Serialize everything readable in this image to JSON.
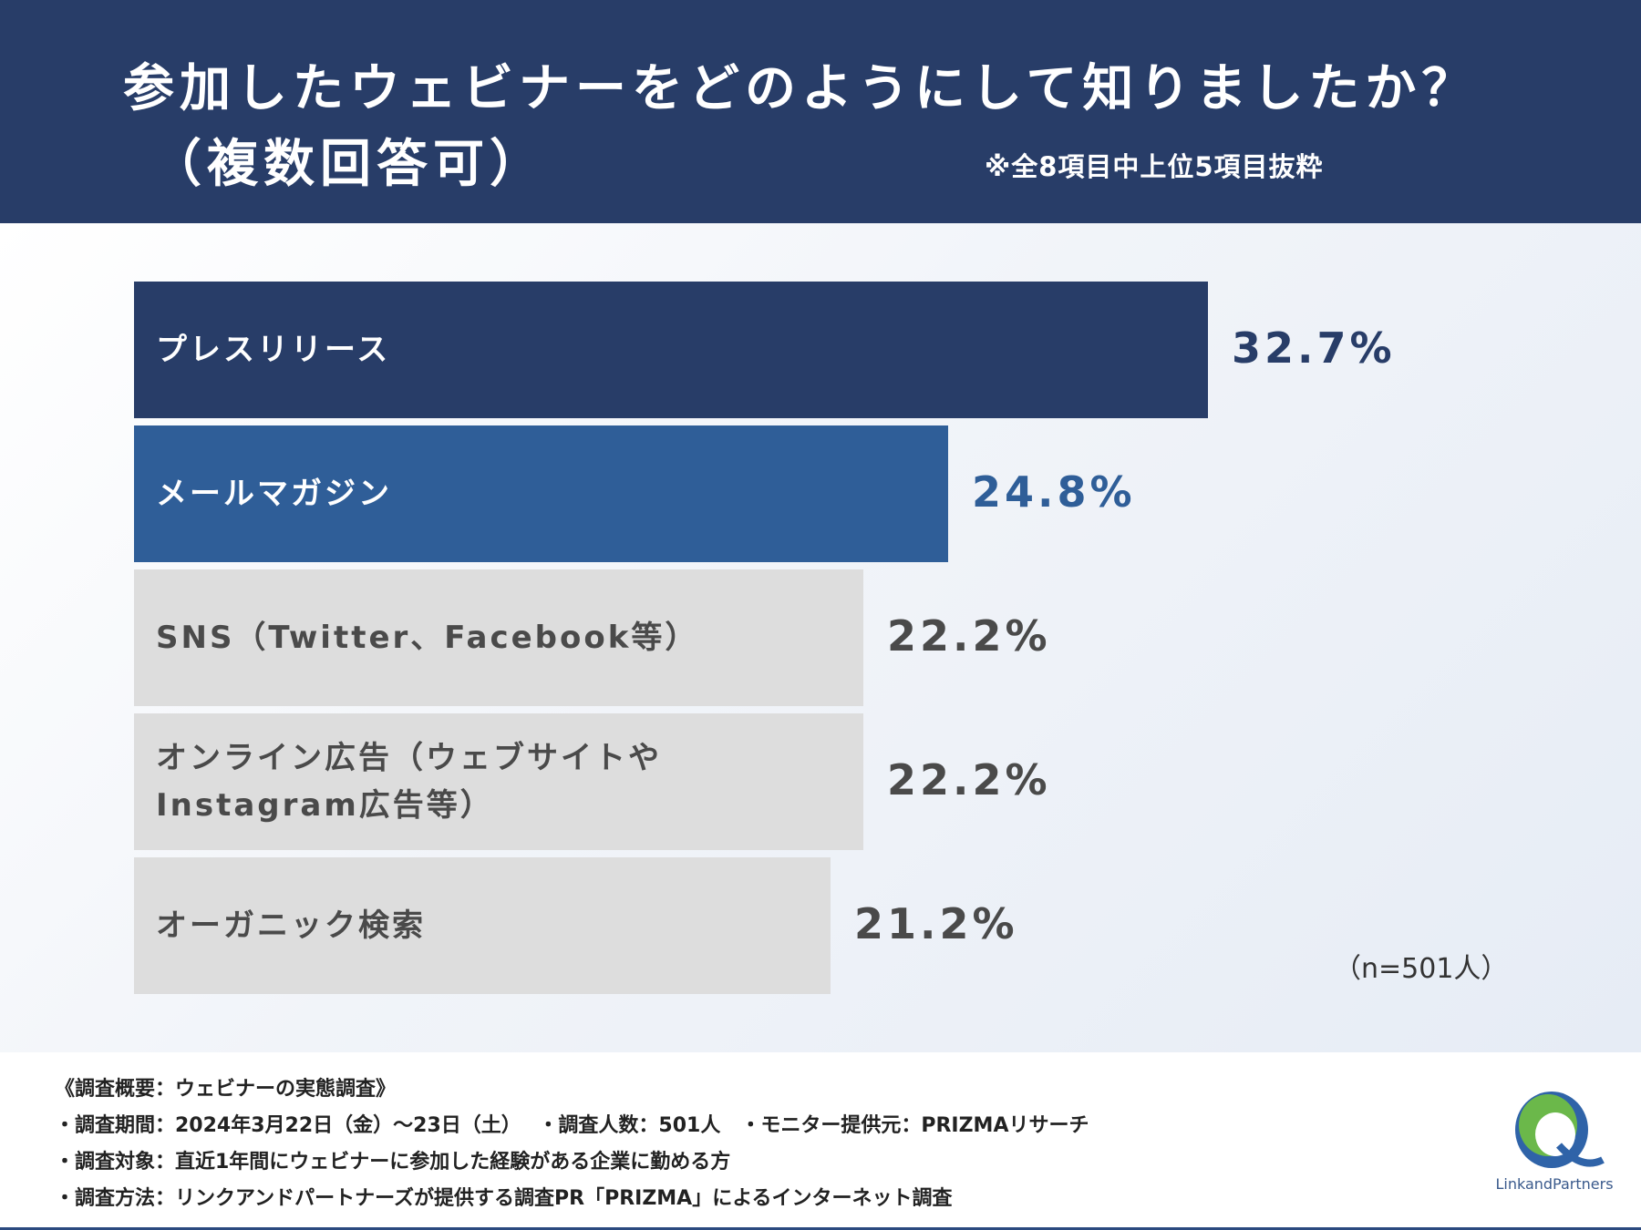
{
  "header": {
    "title_line1": "参加したウェビナーをどのようにして知りましたか？",
    "title_line2": "（複数回答可）",
    "note": "※全8項目中上位5項目抜粋"
  },
  "colors": {
    "header_bg": "#283d68",
    "bar_top": "#283d68",
    "bar_second": "#2f5e98",
    "bar_other": "#dddddd",
    "value_top": "#283d68",
    "value_second": "#2f5e98",
    "value_other": "#4a4a4a"
  },
  "chart_data": {
    "type": "bar",
    "orientation": "horizontal",
    "title": "参加したウェビナーをどのようにして知りましたか？（複数回答可）",
    "categories": [
      "プレスリリース",
      "メールマガジン",
      "SNS（Twitter、Facebook等）",
      "オンライン広告（ウェブサイトや\nInstagram広告等）",
      "オーガニック検索"
    ],
    "values": [
      32.7,
      24.8,
      22.2,
      22.2,
      21.2
    ],
    "value_labels": [
      "32.7%",
      "24.8%",
      "22.2%",
      "22.2%",
      "21.2%"
    ],
    "xlim": [
      0,
      32.7
    ],
    "grid": false,
    "sample_note": "（n=501人）"
  },
  "footer": {
    "lines": [
      "《調査概要：ウェビナーの実態調査》",
      "・調査期間：2024年3月22日（金）〜23日（土）　 ・調査人数：501人　・モニター提供元：PRIZMAリサーチ",
      "・調査対象：直近1年間にウェビナーに参加した経験がある企業に勤める方",
      "・調査方法：リンクアンドパートナーズが提供する調査PR「PRIZMA」によるインターネット調査"
    ],
    "logo_text": "LinkandPartners"
  }
}
